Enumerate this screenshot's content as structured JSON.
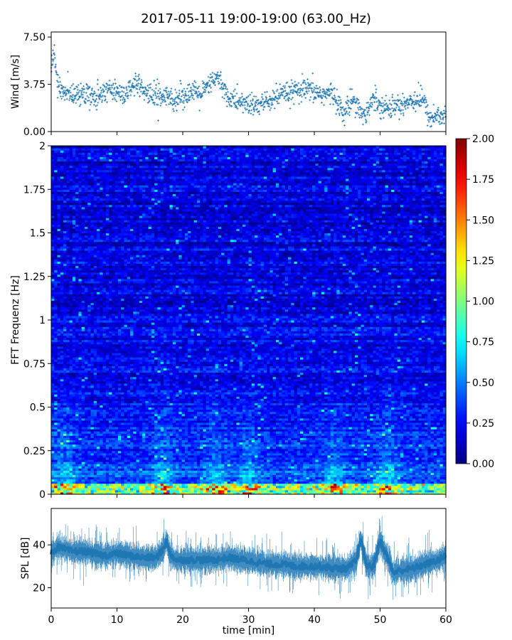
{
  "title": "2017-05-11 19:00-19:00 (63.00_Hz)",
  "colors": {
    "series": "#1f77b4",
    "axis": "#000000",
    "background": "#ffffff"
  },
  "chart_data": [
    {
      "type": "scatter",
      "name": "wind-panel",
      "ylabel": "Wind [m/s]",
      "xlim": [
        0,
        60
      ],
      "ylim": [
        0,
        7.9
      ],
      "yticks": [
        "0.00",
        "3.75",
        "7.50"
      ],
      "ytick_values": [
        0,
        3.75,
        7.5
      ],
      "xtick_values": [
        0,
        10,
        20,
        30,
        40,
        50,
        60
      ],
      "marker": "+",
      "color": "#1f77b4",
      "trend": {
        "x": [
          0,
          0.5,
          1,
          2,
          3,
          5,
          7,
          9,
          11,
          13,
          15,
          17,
          19,
          21,
          23,
          24.5,
          25.5,
          27,
          29,
          31,
          33,
          35,
          37,
          39,
          41,
          43,
          44.5,
          46,
          47.5,
          49,
          51,
          53,
          55,
          56.5,
          57.5,
          59,
          60
        ],
        "y": [
          5.2,
          6.2,
          3.5,
          3.2,
          3.0,
          2.9,
          2.8,
          3.4,
          3.0,
          3.6,
          2.9,
          2.8,
          2.6,
          3.1,
          3.0,
          4.0,
          4.2,
          2.6,
          2.3,
          2.0,
          2.4,
          2.9,
          3.1,
          3.3,
          3.0,
          2.9,
          1.4,
          2.7,
          1.2,
          2.6,
          1.8,
          2.1,
          2.5,
          2.6,
          1.1,
          1.3,
          1.2
        ]
      },
      "spread": 0.55,
      "n_points": 1400
    },
    {
      "type": "heatmap",
      "name": "spectrogram-panel",
      "ylabel": "FFT Frequenz [Hz]",
      "xlim": [
        0,
        60
      ],
      "ylim": [
        0,
        2
      ],
      "yticks": [
        "0",
        "0.25",
        "0.5",
        "0.75",
        "1",
        "1.25",
        "1.5",
        "1.75",
        "2"
      ],
      "ytick_values": [
        0,
        0.25,
        0.5,
        0.75,
        1,
        1.25,
        1.5,
        1.75,
        2
      ],
      "xtick_values": [
        0,
        10,
        20,
        30,
        40,
        50,
        60
      ],
      "colormap": "jet",
      "colorbar": {
        "min": 0,
        "max": 2,
        "ticks": [
          "0.00",
          "0.25",
          "0.50",
          "0.75",
          "1.00",
          "1.25",
          "1.50",
          "1.75",
          "2.00"
        ],
        "tick_values": [
          0,
          0.25,
          0.5,
          0.75,
          1,
          1.25,
          1.5,
          1.75,
          2
        ]
      },
      "freq_bins": 160,
      "time_bins": 130,
      "typical_level_high_freq": 0.2,
      "typical_level_low_freq": 0.45,
      "peak_level_near_zero_hz": 1.9,
      "hot_times_min": [
        2,
        17,
        25,
        30,
        43,
        51
      ]
    },
    {
      "type": "area",
      "name": "spl-panel",
      "ylabel": "SPL [dB]",
      "xlabel": "time [min]",
      "xlim": [
        0,
        60
      ],
      "ylim": [
        10.5,
        57
      ],
      "yticks": [
        "20",
        "40"
      ],
      "ytick_values": [
        20,
        40
      ],
      "xticks": [
        "0",
        "10",
        "20",
        "30",
        "40",
        "50",
        "60"
      ],
      "xtick_values": [
        0,
        10,
        20,
        30,
        40,
        50,
        60
      ],
      "color": "#1f77b4",
      "center": {
        "x": [
          0,
          1,
          2,
          3,
          5,
          8,
          10,
          12,
          14,
          16,
          17,
          17.5,
          18,
          19,
          21,
          23,
          25,
          27,
          29,
          31,
          33,
          35,
          37,
          39,
          41,
          43,
          45,
          46.5,
          47,
          48,
          49,
          50,
          51,
          52,
          53,
          55,
          57,
          59,
          60
        ],
        "y": [
          36,
          39,
          38,
          37,
          37,
          35,
          36,
          35,
          34,
          34,
          38,
          42,
          36,
          33,
          33,
          33,
          33,
          34,
          33,
          32,
          31,
          31,
          30,
          30,
          30,
          29,
          29,
          33,
          43,
          30,
          30,
          42,
          35,
          27,
          28,
          29,
          31,
          33,
          35
        ]
      },
      "band": 6.5
    }
  ]
}
